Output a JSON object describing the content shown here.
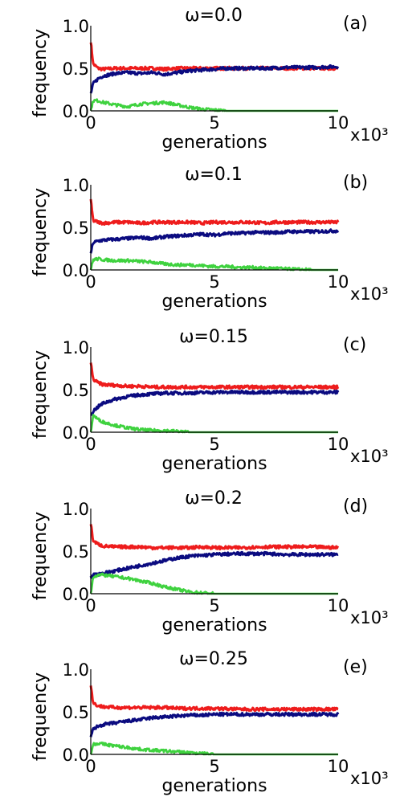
{
  "chart_data": [
    {
      "type": "line",
      "title": "ω=0.0",
      "panel_label": "(a)",
      "xlabel": "generations",
      "ylabel": "frequency",
      "x_multiplier": "x10³",
      "xlim": [
        0,
        10
      ],
      "ylim": [
        0,
        1
      ],
      "xticks": [
        "0",
        "5",
        "10"
      ],
      "yticks": [
        "0.0",
        "0.5",
        "1.0"
      ],
      "x": [
        0,
        0.1,
        0.3,
        0.5,
        1,
        1.5,
        2,
        2.5,
        3,
        3.5,
        4,
        4.5,
        5,
        5.5,
        6,
        7,
        8,
        9,
        10
      ],
      "series": [
        {
          "color": "#ee1c1c",
          "values": [
            0.82,
            0.55,
            0.5,
            0.49,
            0.5,
            0.5,
            0.5,
            0.5,
            0.49,
            0.5,
            0.5,
            0.5,
            0.5,
            0.5,
            0.5,
            0.5,
            0.5,
            0.5,
            0.5
          ]
        },
        {
          "color": "#0b0b80",
          "values": [
            0.2,
            0.32,
            0.38,
            0.41,
            0.44,
            0.45,
            0.44,
            0.45,
            0.43,
            0.45,
            0.47,
            0.48,
            0.49,
            0.5,
            0.5,
            0.5,
            0.51,
            0.51,
            0.52
          ]
        },
        {
          "color": "#3fd23f",
          "values": [
            0.0,
            0.12,
            0.12,
            0.1,
            0.07,
            0.05,
            0.08,
            0.09,
            0.1,
            0.07,
            0.04,
            0.02,
            0.01,
            0.0,
            0.0,
            0.0,
            0.0,
            0.0,
            0.0
          ]
        }
      ]
    },
    {
      "type": "line",
      "title": "ω=0.1",
      "panel_label": "(b)",
      "xlabel": "generations",
      "ylabel": "frequency",
      "x_multiplier": "x10³",
      "xlim": [
        0,
        10
      ],
      "ylim": [
        0,
        1
      ],
      "xticks": [
        "0",
        "5",
        "10"
      ],
      "yticks": [
        "0.0",
        "0.5",
        "1.0"
      ],
      "x": [
        0,
        0.1,
        0.3,
        0.5,
        1,
        1.5,
        2,
        2.5,
        3,
        3.5,
        4,
        4.5,
        5,
        5.5,
        6,
        6.5,
        7,
        7.5,
        8,
        9,
        10
      ],
      "series": [
        {
          "color": "#ee1c1c",
          "values": [
            0.82,
            0.58,
            0.56,
            0.55,
            0.56,
            0.56,
            0.55,
            0.56,
            0.56,
            0.56,
            0.56,
            0.55,
            0.56,
            0.56,
            0.56,
            0.56,
            0.55,
            0.56,
            0.56,
            0.56,
            0.56
          ]
        },
        {
          "color": "#0b0b80",
          "values": [
            0.2,
            0.32,
            0.34,
            0.35,
            0.36,
            0.37,
            0.38,
            0.37,
            0.39,
            0.4,
            0.41,
            0.42,
            0.41,
            0.43,
            0.43,
            0.44,
            0.44,
            0.44,
            0.45,
            0.45,
            0.46
          ]
        },
        {
          "color": "#3fd23f",
          "values": [
            0.0,
            0.12,
            0.13,
            0.12,
            0.11,
            0.11,
            0.1,
            0.09,
            0.07,
            0.06,
            0.06,
            0.05,
            0.04,
            0.04,
            0.03,
            0.03,
            0.02,
            0.02,
            0.01,
            0.0,
            0.0
          ]
        }
      ]
    },
    {
      "type": "line",
      "title": "ω=0.15",
      "panel_label": "(c)",
      "xlabel": "generations",
      "ylabel": "frequency",
      "x_multiplier": "x10³",
      "xlim": [
        0,
        10
      ],
      "ylim": [
        0,
        1
      ],
      "xticks": [
        "0",
        "5",
        "10"
      ],
      "yticks": [
        "0.0",
        "0.5",
        "1.0"
      ],
      "x": [
        0,
        0.1,
        0.3,
        0.5,
        1,
        1.5,
        2,
        2.5,
        3,
        3.5,
        4,
        5,
        6,
        7,
        8,
        9,
        10
      ],
      "series": [
        {
          "color": "#ee1c1c",
          "values": [
            0.82,
            0.62,
            0.58,
            0.56,
            0.55,
            0.54,
            0.54,
            0.53,
            0.53,
            0.53,
            0.53,
            0.53,
            0.53,
            0.53,
            0.53,
            0.53,
            0.53
          ]
        },
        {
          "color": "#0b0b80",
          "values": [
            0.2,
            0.25,
            0.3,
            0.34,
            0.39,
            0.42,
            0.44,
            0.45,
            0.46,
            0.46,
            0.46,
            0.47,
            0.47,
            0.47,
            0.47,
            0.47,
            0.47
          ]
        },
        {
          "color": "#3fd23f",
          "values": [
            0.0,
            0.2,
            0.15,
            0.12,
            0.08,
            0.05,
            0.03,
            0.02,
            0.02,
            0.01,
            0.0,
            0.0,
            0.0,
            0.0,
            0.0,
            0.0,
            0.0
          ]
        }
      ]
    },
    {
      "type": "line",
      "title": "ω=0.2",
      "panel_label": "(d)",
      "xlabel": "generations",
      "ylabel": "frequency",
      "x_multiplier": "x10³",
      "xlim": [
        0,
        10
      ],
      "ylim": [
        0,
        1
      ],
      "xticks": [
        "0",
        "5",
        "10"
      ],
      "yticks": [
        "0.0",
        "0.5",
        "1.0"
      ],
      "x": [
        0,
        0.1,
        0.3,
        0.5,
        1,
        1.5,
        2,
        2.5,
        3,
        3.5,
        4,
        4.5,
        5,
        6,
        7,
        8,
        9,
        10
      ],
      "series": [
        {
          "color": "#ee1c1c",
          "values": [
            0.82,
            0.62,
            0.58,
            0.56,
            0.55,
            0.55,
            0.55,
            0.54,
            0.54,
            0.54,
            0.54,
            0.55,
            0.54,
            0.54,
            0.55,
            0.55,
            0.55,
            0.54
          ]
        },
        {
          "color": "#0b0b80",
          "values": [
            0.2,
            0.22,
            0.23,
            0.24,
            0.27,
            0.3,
            0.33,
            0.36,
            0.39,
            0.42,
            0.44,
            0.45,
            0.46,
            0.47,
            0.47,
            0.46,
            0.46,
            0.46
          ]
        },
        {
          "color": "#3fd23f",
          "values": [
            0.0,
            0.2,
            0.22,
            0.22,
            0.2,
            0.18,
            0.15,
            0.12,
            0.08,
            0.05,
            0.02,
            0.01,
            0.0,
            0.0,
            0.0,
            0.0,
            0.0,
            0.0
          ]
        }
      ]
    },
    {
      "type": "line",
      "title": "ω=0.25",
      "panel_label": "(e)",
      "xlabel": "generations",
      "ylabel": "frequency",
      "x_multiplier": "x10³",
      "xlim": [
        0,
        10
      ],
      "ylim": [
        0,
        1
      ],
      "xticks": [
        "0",
        "5",
        "10"
      ],
      "yticks": [
        "0.0",
        "0.5",
        "1.0"
      ],
      "x": [
        0,
        0.1,
        0.3,
        0.5,
        1,
        1.5,
        2,
        2.5,
        3,
        3.5,
        4,
        4.5,
        5,
        6,
        7,
        8,
        9,
        10
      ],
      "series": [
        {
          "color": "#ee1c1c",
          "values": [
            0.82,
            0.6,
            0.57,
            0.56,
            0.55,
            0.55,
            0.55,
            0.55,
            0.55,
            0.54,
            0.54,
            0.54,
            0.54,
            0.53,
            0.53,
            0.53,
            0.53,
            0.53
          ]
        },
        {
          "color": "#0b0b80",
          "values": [
            0.2,
            0.3,
            0.33,
            0.35,
            0.37,
            0.39,
            0.41,
            0.43,
            0.44,
            0.45,
            0.46,
            0.46,
            0.47,
            0.47,
            0.47,
            0.47,
            0.47,
            0.47
          ]
        },
        {
          "color": "#3fd23f",
          "values": [
            0.0,
            0.12,
            0.13,
            0.12,
            0.1,
            0.08,
            0.06,
            0.05,
            0.04,
            0.03,
            0.02,
            0.01,
            0.0,
            0.0,
            0.0,
            0.0,
            0.0,
            0.0
          ]
        }
      ]
    }
  ]
}
